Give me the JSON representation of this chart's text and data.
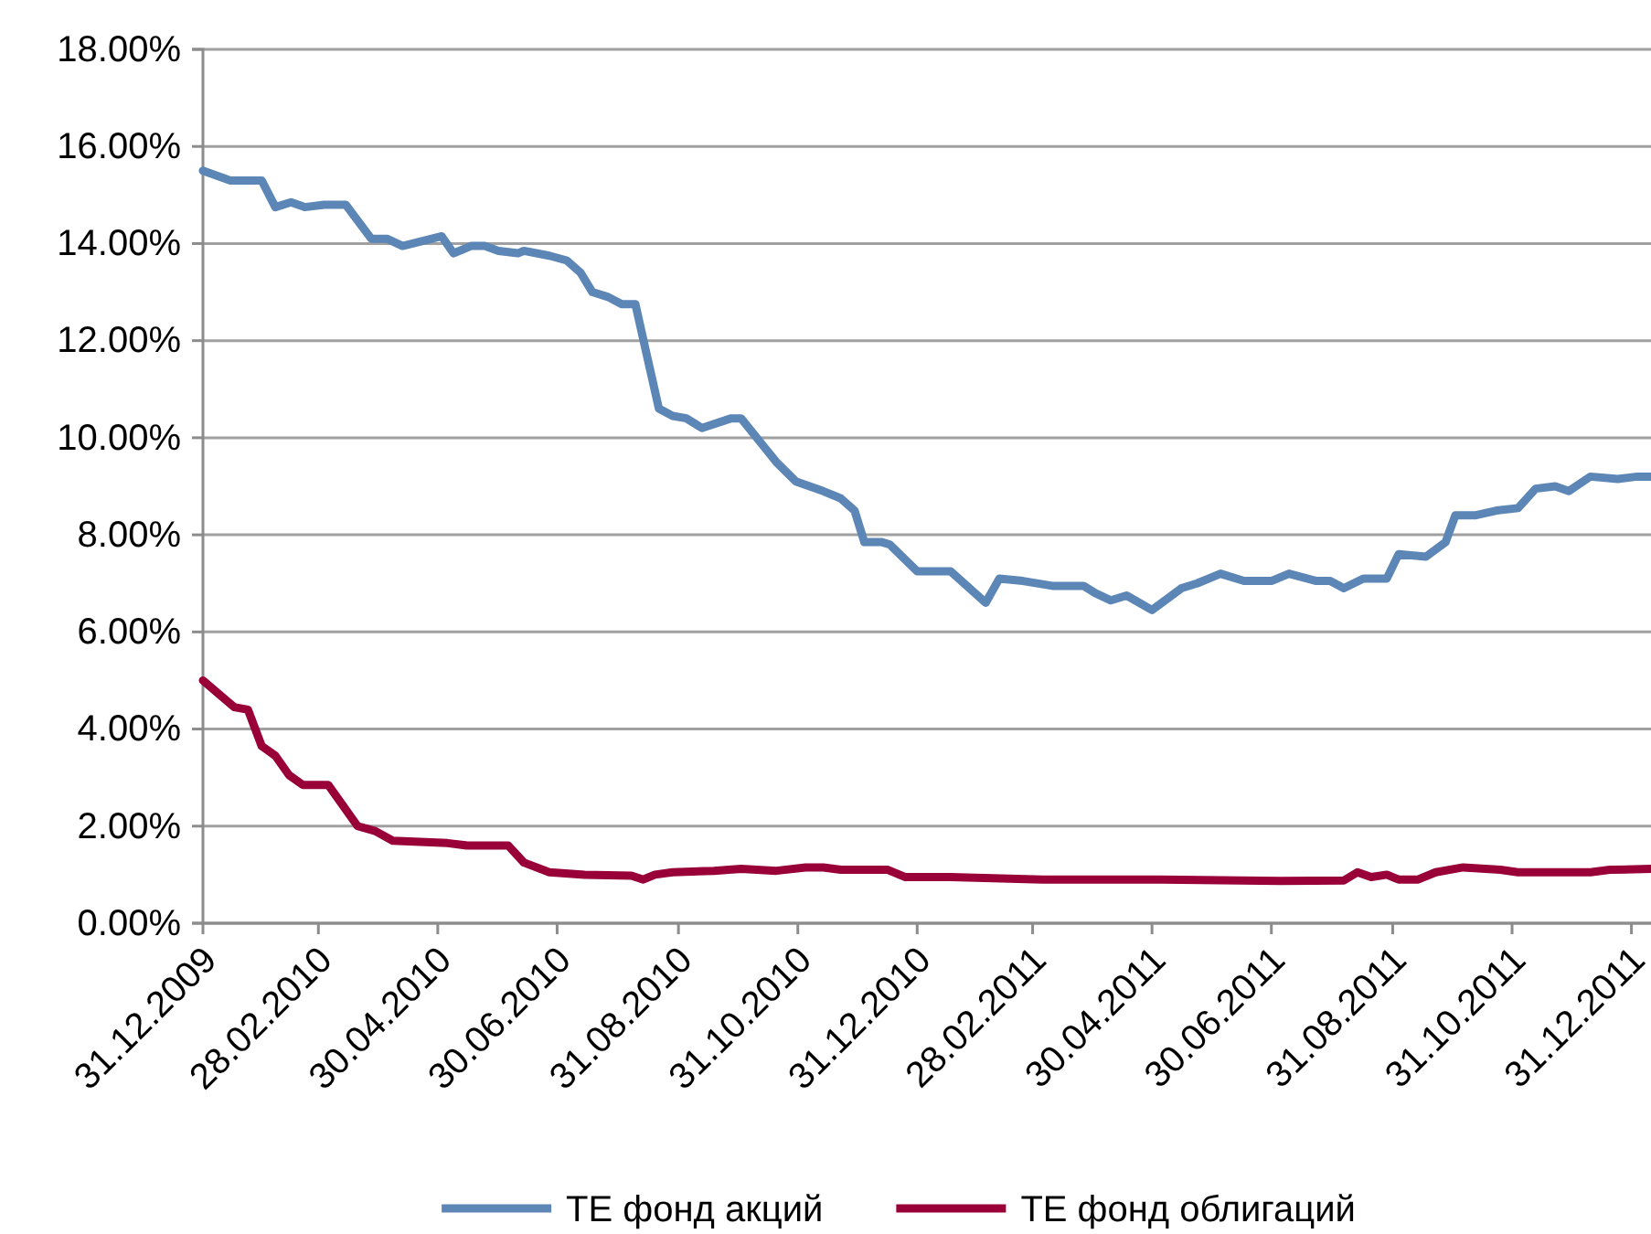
{
  "chart_data": {
    "type": "line",
    "legend": "bottom",
    "grid": "y",
    "line_style": "solid",
    "marker": "none",
    "xlim": [
      "2009-12-31",
      "2012-01-10"
    ],
    "xticks": [
      {
        "value": "2009-12-31",
        "label": "31.12.2009"
      },
      {
        "value": "2010-02-28",
        "label": "28.02.2010"
      },
      {
        "value": "2010-04-30",
        "label": "30.04.2010"
      },
      {
        "value": "2010-06-30",
        "label": "30.06.2010"
      },
      {
        "value": "2010-08-31",
        "label": "31.08.2010"
      },
      {
        "value": "2010-10-31",
        "label": "31.10.2010"
      },
      {
        "value": "2010-12-31",
        "label": "31.12.2010"
      },
      {
        "value": "2011-02-28",
        "label": "28.02.2011"
      },
      {
        "value": "2011-04-30",
        "label": "30.04.2011"
      },
      {
        "value": "2011-06-30",
        "label": "30.06.2011"
      },
      {
        "value": "2011-08-31",
        "label": "31.08.2011"
      },
      {
        "value": "2011-10-31",
        "label": "31.10.2011"
      },
      {
        "value": "2011-12-31",
        "label": "31.12.2011"
      }
    ],
    "ylim": [
      0,
      18
    ],
    "yticks": [
      {
        "value": 0,
        "label": "0.00%"
      },
      {
        "value": 2,
        "label": "2.00%"
      },
      {
        "value": 4,
        "label": "4.00%"
      },
      {
        "value": 6,
        "label": "6.00%"
      },
      {
        "value": 8,
        "label": "8.00%"
      },
      {
        "value": 10,
        "label": "10.00%"
      },
      {
        "value": 12,
        "label": "12.00%"
      },
      {
        "value": 14,
        "label": "14.00%"
      },
      {
        "value": 16,
        "label": "16.00%"
      },
      {
        "value": 18,
        "label": "18.00%"
      }
    ],
    "series": [
      {
        "name": "ТЕ фонд акций",
        "color": "#5b86b6",
        "x": [
          "2009-12-31",
          "2010-01-14",
          "2010-01-30",
          "2010-02-06",
          "2010-02-14",
          "2010-02-21",
          "2010-03-03",
          "2010-03-14",
          "2010-03-27",
          "2010-04-04",
          "2010-04-12",
          "2010-04-27",
          "2010-05-02",
          "2010-05-08",
          "2010-05-17",
          "2010-05-24",
          "2010-05-31",
          "2010-06-10",
          "2010-06-13",
          "2010-06-26",
          "2010-07-05",
          "2010-07-12",
          "2010-07-18",
          "2010-07-26",
          "2010-08-02",
          "2010-08-09",
          "2010-08-14",
          "2010-08-21",
          "2010-08-28",
          "2010-09-04",
          "2010-09-12",
          "2010-09-27",
          "2010-10-02",
          "2010-10-14",
          "2010-10-20",
          "2010-10-30",
          "2010-11-13",
          "2010-11-22",
          "2010-11-29",
          "2010-12-04",
          "2010-12-13",
          "2010-12-17",
          "2010-12-31",
          "2011-01-17",
          "2011-02-04",
          "2011-02-11",
          "2011-02-23",
          "2011-03-10",
          "2011-03-26",
          "2011-04-01",
          "2011-04-09",
          "2011-04-17",
          "2011-04-30",
          "2011-05-15",
          "2011-05-23",
          "2011-06-04",
          "2011-06-16",
          "2011-06-30",
          "2011-07-09",
          "2011-07-23",
          "2011-07-30",
          "2011-08-06",
          "2011-08-16",
          "2011-08-28",
          "2011-09-03",
          "2011-09-17",
          "2011-09-27",
          "2011-10-02",
          "2011-10-12",
          "2011-10-23",
          "2011-11-03",
          "2011-11-12",
          "2011-11-22",
          "2011-11-29",
          "2011-12-10",
          "2011-12-24",
          "2012-01-03",
          "2012-01-10"
        ],
        "values": [
          15.5,
          15.3,
          15.3,
          14.75,
          14.85,
          14.75,
          14.8,
          14.8,
          14.1,
          14.1,
          13.95,
          14.1,
          14.15,
          13.8,
          13.95,
          13.95,
          13.85,
          13.8,
          13.85,
          13.75,
          13.65,
          13.4,
          13.0,
          12.9,
          12.75,
          12.75,
          11.85,
          10.6,
          10.45,
          10.4,
          10.2,
          10.4,
          10.4,
          9.8,
          9.5,
          9.1,
          8.9,
          8.75,
          8.5,
          7.85,
          7.85,
          7.8,
          7.25,
          7.25,
          6.6,
          7.1,
          7.05,
          6.95,
          6.95,
          6.8,
          6.65,
          6.75,
          6.45,
          6.9,
          7.0,
          7.2,
          7.05,
          7.05,
          7.2,
          7.05,
          7.05,
          6.9,
          7.1,
          7.1,
          7.6,
          7.55,
          7.85,
          8.4,
          8.4,
          8.5,
          8.55,
          8.95,
          9.0,
          8.9,
          9.2,
          9.15,
          9.2,
          9.2
        ]
      },
      {
        "name": "ТЕ фонд облигаций",
        "color": "#990038",
        "x": [
          "2009-12-31",
          "2010-01-16",
          "2010-01-23",
          "2010-01-30",
          "2010-02-06",
          "2010-02-13",
          "2010-02-20",
          "2010-03-05",
          "2010-03-13",
          "2010-03-20",
          "2010-03-29",
          "2010-04-07",
          "2010-05-05",
          "2010-05-15",
          "2010-06-05",
          "2010-06-13",
          "2010-06-26",
          "2010-07-14",
          "2010-08-07",
          "2010-08-13",
          "2010-08-19",
          "2010-08-28",
          "2010-09-18",
          "2010-10-02",
          "2010-10-20",
          "2010-11-04",
          "2010-11-13",
          "2010-11-22",
          "2010-12-16",
          "2010-12-25",
          "2011-01-17",
          "2011-03-05",
          "2011-04-30",
          "2011-07-05",
          "2011-08-06",
          "2011-08-13",
          "2011-08-20",
          "2011-08-28",
          "2011-09-03",
          "2011-09-13",
          "2011-09-22",
          "2011-10-06",
          "2011-10-25",
          "2011-11-03",
          "2011-12-10",
          "2011-12-20",
          "2012-01-10"
        ],
        "values": [
          5.0,
          4.45,
          4.4,
          3.65,
          3.45,
          3.05,
          2.85,
          2.85,
          2.4,
          2.0,
          1.9,
          1.7,
          1.65,
          1.6,
          1.6,
          1.25,
          1.05,
          1.0,
          0.98,
          0.9,
          1.0,
          1.05,
          1.08,
          1.12,
          1.08,
          1.15,
          1.15,
          1.1,
          1.1,
          0.95,
          0.95,
          0.9,
          0.9,
          0.87,
          0.88,
          1.05,
          0.95,
          1.0,
          0.9,
          0.9,
          1.05,
          1.15,
          1.1,
          1.05,
          1.05,
          1.1,
          1.12
        ]
      }
    ]
  }
}
